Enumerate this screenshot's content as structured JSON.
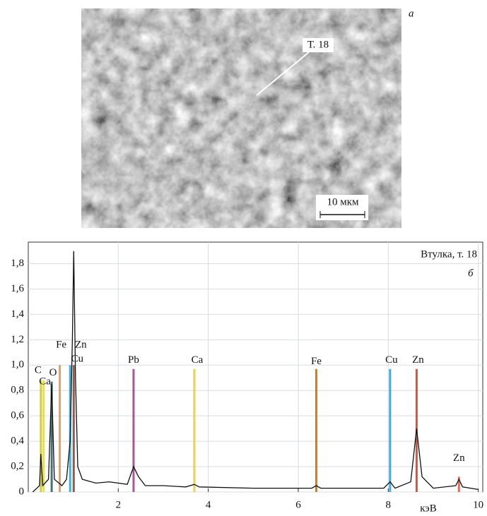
{
  "image": {
    "panel_label": "а",
    "annotation": "Т. 18",
    "scale_bar": "10 мкм"
  },
  "chart_data": {
    "type": "spectrum",
    "title": "Втулка, т. 18",
    "panel_label": "б",
    "x_label": "кэВ",
    "xlim": [
      0,
      10.1
    ],
    "ylim": [
      0,
      1.97
    ],
    "xticks": [
      2,
      4,
      6,
      8,
      10
    ],
    "yticks": [
      0,
      {
        "value": 0.2,
        "label": "0,2"
      },
      {
        "value": 0.4,
        "label": "0,4"
      },
      {
        "value": 0.6,
        "label": "0,6"
      },
      {
        "value": 0.8,
        "label": "0,8"
      },
      {
        "value": 1.0,
        "label": "1,0"
      },
      {
        "value": 1.2,
        "label": "1,2"
      },
      {
        "value": 1.4,
        "label": "1,4"
      },
      {
        "value": 1.6,
        "label": "1,6"
      },
      {
        "value": 1.8,
        "label": "1,8"
      }
    ],
    "grid": true,
    "series": [
      {
        "color": "#111111",
        "x": [
          0.1,
          0.25,
          0.28,
          0.32,
          0.45,
          0.52,
          0.58,
          0.75,
          0.85,
          0.93,
          0.98,
          1.01,
          1.05,
          1.1,
          1.2,
          1.5,
          1.8,
          2.2,
          2.34,
          2.45,
          2.6,
          3.0,
          3.5,
          3.69,
          3.8,
          5.0,
          6.3,
          6.4,
          6.5,
          7.9,
          8.04,
          8.15,
          8.5,
          8.63,
          8.75,
          9.0,
          9.5,
          9.57,
          9.65,
          10.0
        ],
        "values": [
          0,
          0.05,
          0.3,
          0.05,
          0.1,
          0.85,
          0.1,
          0.05,
          0.1,
          0.4,
          1.2,
          1.9,
          0.9,
          0.2,
          0.1,
          0.07,
          0.08,
          0.06,
          0.2,
          0.12,
          0.05,
          0.05,
          0.04,
          0.06,
          0.04,
          0.03,
          0.03,
          0.05,
          0.03,
          0.03,
          0.08,
          0.03,
          0.08,
          0.5,
          0.12,
          0.03,
          0.05,
          0.1,
          0.04,
          0.02
        ]
      }
    ],
    "peaks": [
      {
        "label": "C",
        "x": 0.28,
        "value": 0.88,
        "color": "#c8c23a"
      },
      {
        "label": "Ca",
        "x": 0.34,
        "value": 0.88,
        "color": "#e0d84a"
      },
      {
        "label": "O",
        "x": 0.52,
        "value": 0.87,
        "color": "#2a5a5a"
      },
      {
        "label": "Fe",
        "x": 0.7,
        "value": 1.0,
        "color": "#e0904a"
      },
      {
        "label": "Cu",
        "x": 0.93,
        "value": 1.0,
        "color": "#2aa0c8"
      },
      {
        "label": "Zn",
        "x": 1.01,
        "value": 1.0,
        "color": "#8a3a2a"
      },
      {
        "label": "Pb",
        "x": 2.34,
        "value": 0.97,
        "color": "#9a3a8a"
      },
      {
        "label": "Ca",
        "x": 3.69,
        "value": 0.97,
        "color": "#e0d030"
      },
      {
        "label": "Fe",
        "x": 6.4,
        "value": 0.97,
        "color": "#a8702a"
      },
      {
        "label": "Cu",
        "x": 8.04,
        "value": 0.97,
        "color": "#2a98c8"
      },
      {
        "label": "Zn",
        "x": 8.63,
        "value": 0.97,
        "color": "#a04a3a"
      },
      {
        "label": "Zn",
        "x": 9.57,
        "value": 0.12,
        "color": "#d05a4a"
      }
    ]
  }
}
